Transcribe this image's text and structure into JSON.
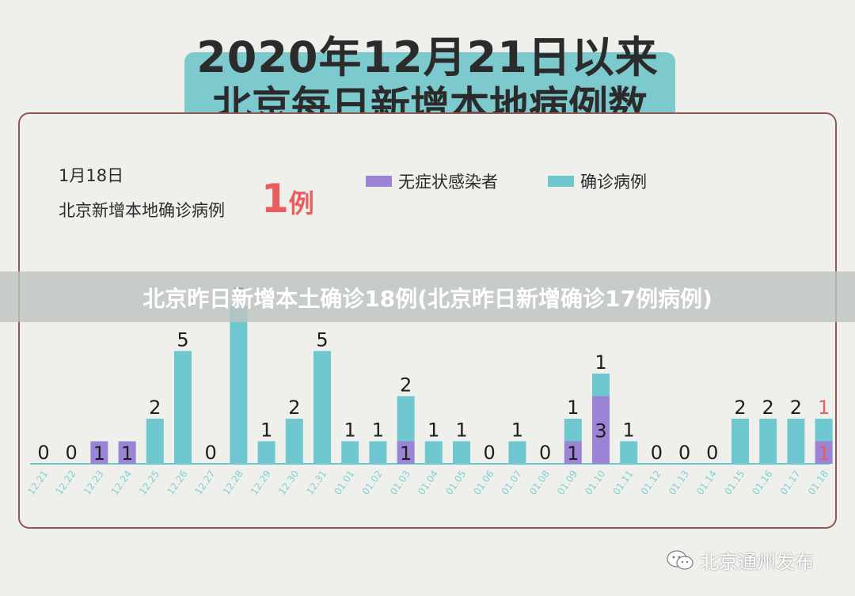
{
  "title": {
    "line1": "2020年12月21日以来",
    "line2": "北京每日新增本地病例数"
  },
  "info": {
    "date": "1月18日",
    "label": "北京新增本地确诊病例",
    "count": "1",
    "unit": "例"
  },
  "overlay_text": "北京昨日新增本土确诊18例(北京昨日新增确诊17例病例)",
  "watermark": "北京通州发布",
  "colors": {
    "asymptomatic": "#9b84d6",
    "confirmed": "#6fc7d0",
    "highlight": "#e85e5e",
    "baseline": "#6fc7d0"
  },
  "chart_data": {
    "type": "bar",
    "stacked": true,
    "categories": [
      "12.21",
      "12.22",
      "12.23",
      "12.24",
      "12.25",
      "12.26",
      "12.27",
      "12.28",
      "12.29",
      "12.30",
      "12.31",
      "01.01",
      "01.02",
      "01.03",
      "01.04",
      "01.05",
      "01.06",
      "01.07",
      "01.08",
      "01.09",
      "01.10",
      "01.11",
      "01.12",
      "01.13",
      "01.14",
      "01.15",
      "01.16",
      "01.17",
      "01.18"
    ],
    "series": [
      {
        "name": "无症状感染者",
        "values": [
          0,
          0,
          1,
          1,
          0,
          0,
          0,
          0,
          0,
          0,
          0,
          0,
          0,
          1,
          0,
          0,
          0,
          0,
          0,
          1,
          3,
          0,
          0,
          0,
          0,
          0,
          0,
          0,
          1
        ]
      },
      {
        "name": "确诊病例",
        "values": [
          0,
          0,
          0,
          0,
          2,
          5,
          0,
          7,
          1,
          2,
          5,
          1,
          1,
          2,
          1,
          1,
          0,
          1,
          0,
          1,
          1,
          1,
          0,
          0,
          0,
          2,
          2,
          2,
          1
        ]
      }
    ],
    "legend": "top-right",
    "grid": false
  }
}
